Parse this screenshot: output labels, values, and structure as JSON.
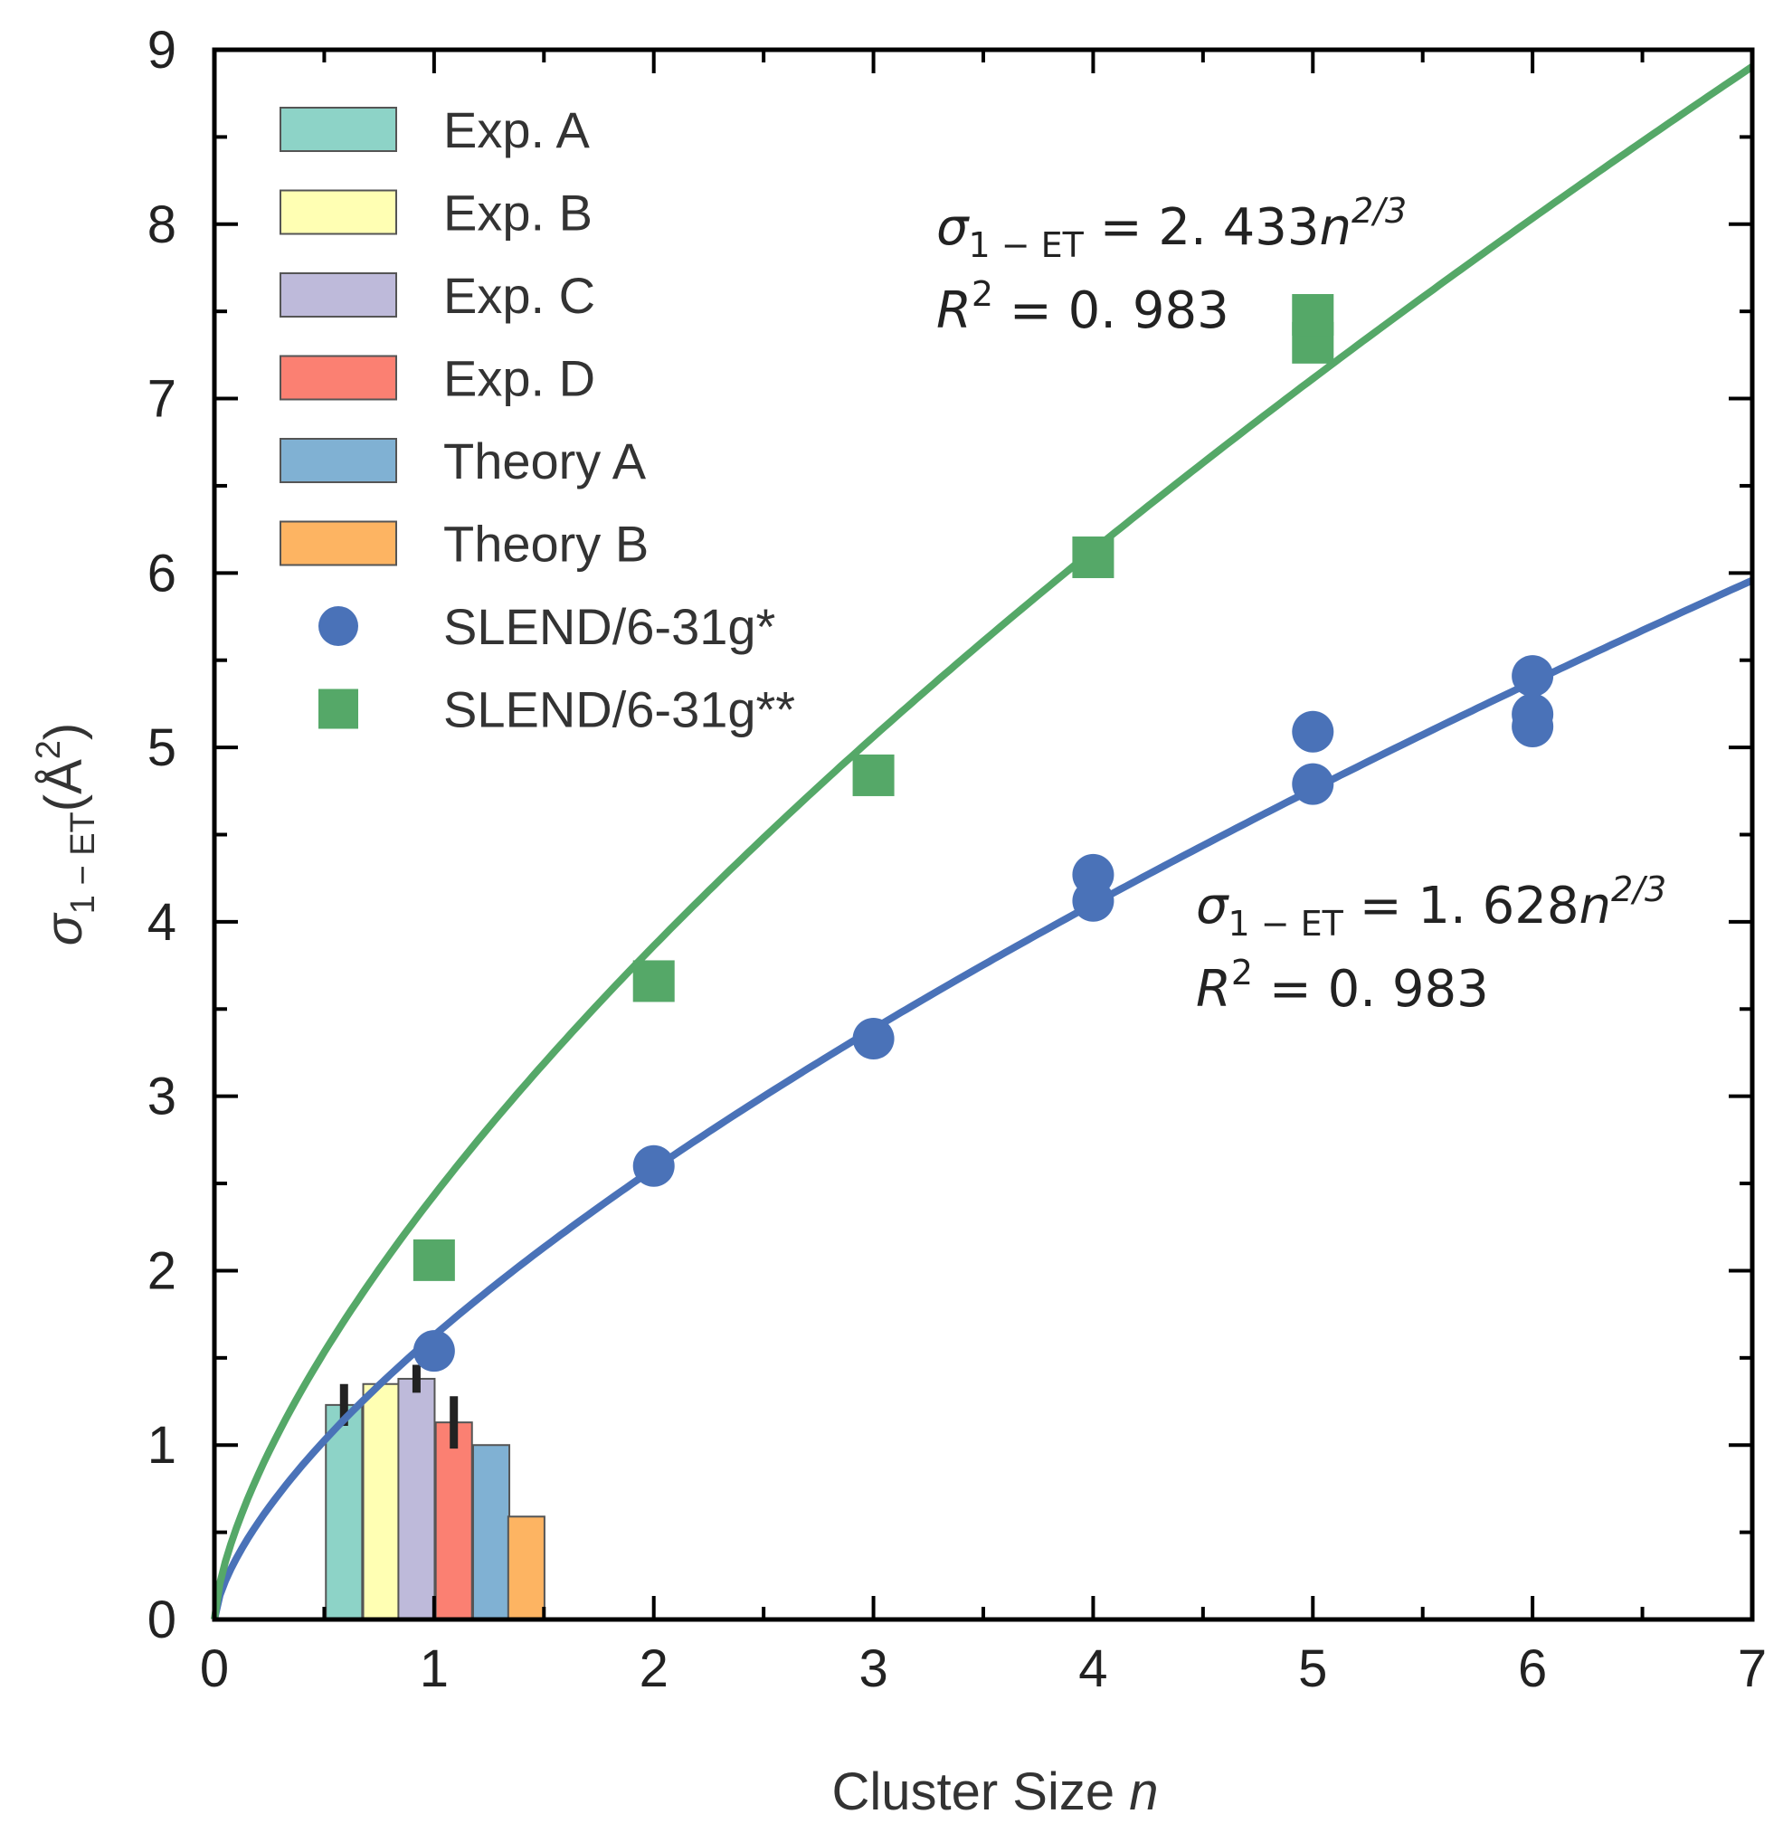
{
  "chart_data": {
    "type": "scatter",
    "xlabel": "Cluster Size",
    "xlabel_var": "n",
    "ylabel_sym": "σ",
    "ylabel_sub": "1 − ET",
    "ylabel_unit": "(Å",
    "ylabel_sup": "2",
    "ylabel_close": ")",
    "xlim": [
      0,
      7
    ],
    "ylim": [
      0,
      9
    ],
    "x_ticks": [
      "0",
      "1",
      "2",
      "3",
      "4",
      "5",
      "6",
      "7"
    ],
    "y_ticks": [
      "0",
      "1",
      "2",
      "3",
      "4",
      "5",
      "6",
      "7",
      "8",
      "9"
    ],
    "grid": false,
    "legend_position": "top-left",
    "bars": [
      {
        "name": "Exp. A",
        "value": 1.23,
        "error": 0.12,
        "color": "#8dd3c7"
      },
      {
        "name": "Exp. B",
        "value": 1.35,
        "error": null,
        "color": "#ffffb3"
      },
      {
        "name": "Exp. C",
        "value": 1.38,
        "error": 0.08,
        "color": "#bebada"
      },
      {
        "name": "Exp. D",
        "value": 1.13,
        "error": 0.15,
        "color": "#fb8072"
      },
      {
        "name": "Theory A",
        "value": 1.0,
        "error": null,
        "color": "#80b1d3"
      },
      {
        "name": "Theory B",
        "value": 0.59,
        "error": null,
        "color": "#fdb462"
      }
    ],
    "bar_positions": [
      0.59,
      0.76,
      0.92,
      1.09,
      1.26,
      1.42
    ],
    "bar_width": 0.165,
    "series": [
      {
        "name": "SLEND/6-31g*",
        "marker": "circle",
        "color": "#4a72b8",
        "x": [
          1,
          2,
          3,
          4,
          4,
          5,
          5,
          6,
          6,
          6
        ],
        "y": [
          1.54,
          2.6,
          3.33,
          4.12,
          4.27,
          4.79,
          5.09,
          5.12,
          5.19,
          5.41
        ]
      },
      {
        "name": "SLEND/6-31g**",
        "marker": "square",
        "color": "#55a868",
        "x": [
          1,
          2,
          3,
          4,
          5,
          5
        ],
        "y": [
          2.06,
          3.66,
          4.84,
          6.09,
          7.32,
          7.48
        ]
      }
    ],
    "fits": [
      {
        "series": "SLEND/6-31g*",
        "coef": 1.628,
        "exponent": 0.6667,
        "color": "#4a72b8"
      },
      {
        "series": "SLEND/6-31g**",
        "coef": 2.433,
        "exponent": 0.6667,
        "color": "#55a868"
      }
    ],
    "annotations": [
      {
        "sym": "σ",
        "sub": "1 − ET",
        "eq": " = 2. 433",
        "var": "n",
        "exp": "2/3",
        "r_sym": "R",
        "r_exp": "2",
        "r_val": " = 0. 983"
      },
      {
        "sym": "σ",
        "sub": "1 − ET",
        "eq": " = 1. 628",
        "var": "n",
        "exp": "2/3",
        "r_sym": "R",
        "r_exp": "2",
        "r_val": " = 0. 983"
      }
    ]
  }
}
